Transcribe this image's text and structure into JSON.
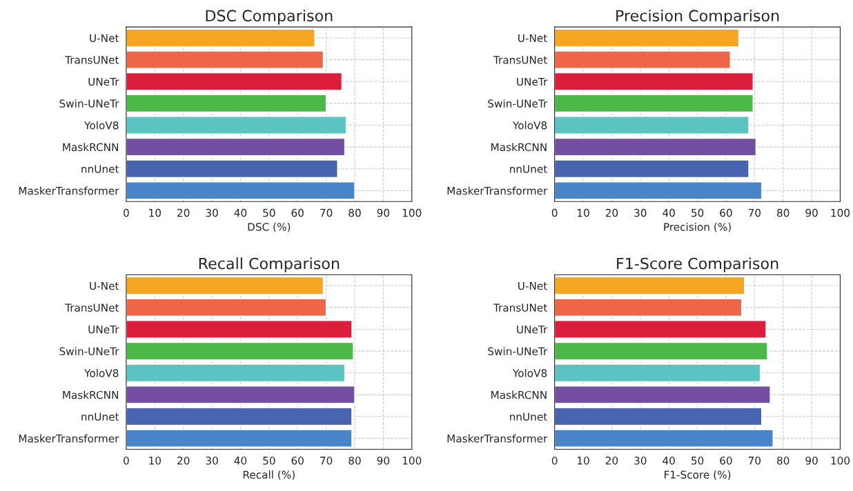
{
  "chart_data": [
    {
      "type": "bar",
      "orientation": "horizontal",
      "title": "DSC Comparison",
      "xlabel": "DSC (%)",
      "categories": [
        "U-Net",
        "TransUNet",
        "UNeTr",
        "Swin-UNeTr",
        "YoloV8",
        "MaskRCNN",
        "nnUnet",
        "MaskerTransformer"
      ],
      "values": [
        66,
        69,
        75.5,
        70,
        77,
        76.5,
        74,
        80
      ],
      "colors": [
        "#f5a623",
        "#ef6548",
        "#dc1e3c",
        "#4cb848",
        "#5bc4c2",
        "#744ea0",
        "#4863b0",
        "#4a84c8"
      ],
      "xlim": [
        0,
        100
      ],
      "xticks": [
        0,
        10,
        20,
        30,
        40,
        50,
        60,
        70,
        80,
        90,
        100
      ],
      "grid": true,
      "line_style": "dashed"
    },
    {
      "type": "bar",
      "orientation": "horizontal",
      "title": "Precision Comparison",
      "xlabel": "Precision (%)",
      "categories": [
        "U-Net",
        "TransUNet",
        "UNeTr",
        "Swin-UNeTr",
        "YoloV8",
        "MaskRCNN",
        "nnUnet",
        "MaskerTransformer"
      ],
      "values": [
        64.5,
        61.5,
        69.5,
        69.5,
        68,
        70.5,
        68,
        72.5
      ],
      "colors": [
        "#f5a623",
        "#ef6548",
        "#dc1e3c",
        "#4cb848",
        "#5bc4c2",
        "#744ea0",
        "#4863b0",
        "#4a84c8"
      ],
      "xlim": [
        0,
        100
      ],
      "xticks": [
        0,
        10,
        20,
        30,
        40,
        50,
        60,
        70,
        80,
        90,
        100
      ],
      "grid": true,
      "line_style": "dashed"
    },
    {
      "type": "bar",
      "orientation": "horizontal",
      "title": "Recall Comparison",
      "xlabel": "Recall (%)",
      "categories": [
        "U-Net",
        "TransUNet",
        "UNeTr",
        "Swin-UNeTr",
        "YoloV8",
        "MaskRCNN",
        "nnUnet",
        "MaskerTransformer"
      ],
      "values": [
        69,
        70,
        79,
        79.5,
        76.5,
        80,
        79,
        79
      ],
      "colors": [
        "#f5a623",
        "#ef6548",
        "#dc1e3c",
        "#4cb848",
        "#5bc4c2",
        "#744ea0",
        "#4863b0",
        "#4a84c8"
      ],
      "xlim": [
        0,
        100
      ],
      "xticks": [
        0,
        10,
        20,
        30,
        40,
        50,
        60,
        70,
        80,
        90,
        100
      ],
      "grid": true,
      "line_style": "dashed"
    },
    {
      "type": "bar",
      "orientation": "horizontal",
      "title": "F1-Score Comparison",
      "xlabel": "F1-Score (%)",
      "categories": [
        "U-Net",
        "TransUNet",
        "UNeTr",
        "Swin-UNeTr",
        "YoloV8",
        "MaskRCNN",
        "nnUnet",
        "MaskerTransformer"
      ],
      "values": [
        66.5,
        65.5,
        74,
        74.5,
        72,
        75.5,
        72.5,
        76.5
      ],
      "colors": [
        "#f5a623",
        "#ef6548",
        "#dc1e3c",
        "#4cb848",
        "#5bc4c2",
        "#744ea0",
        "#4863b0",
        "#4a84c8"
      ],
      "xlim": [
        0,
        100
      ],
      "xticks": [
        0,
        10,
        20,
        30,
        40,
        50,
        60,
        70,
        80,
        90,
        100
      ],
      "grid": true,
      "line_style": "dashed"
    }
  ]
}
